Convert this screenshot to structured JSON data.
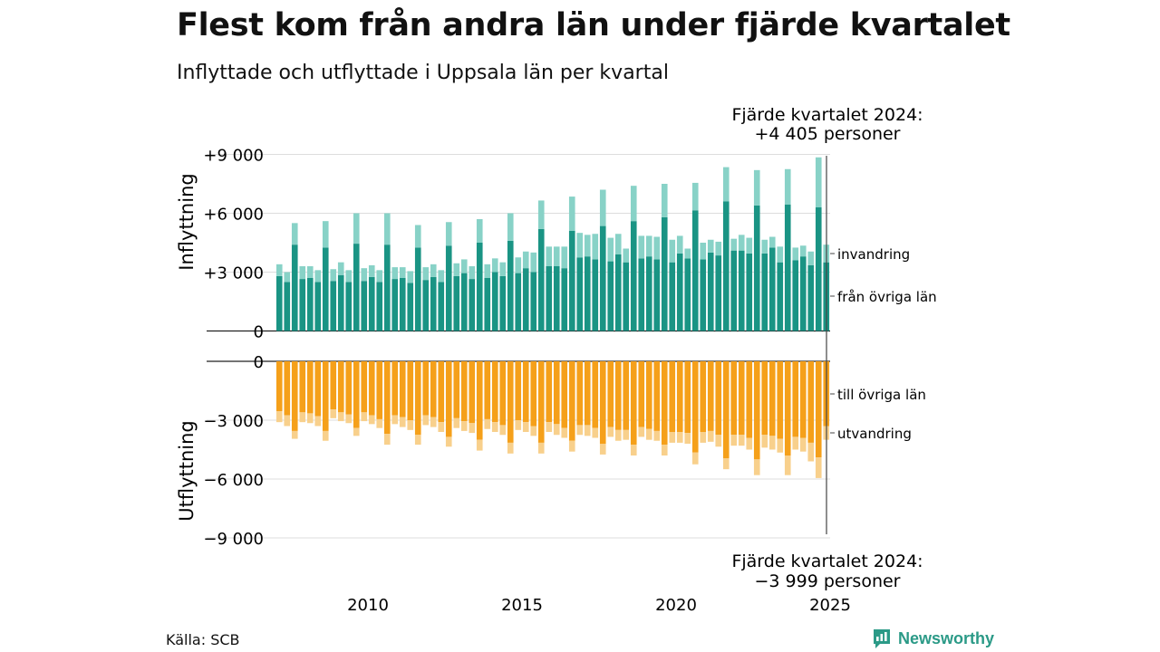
{
  "title": "Flest kom från andra län under fjärde kvartalet",
  "subtitle": "Inflyttade och utflyttade i Uppsala län per kvartal",
  "source": "Källa: SCB",
  "logo_text": "Newsworthy",
  "annotation_top": {
    "line1": "Fjärde kvartalet 2024:",
    "line2": "+4 405 personer"
  },
  "annotation_bottom": {
    "line1": "Fjärde kvartalet 2024:",
    "line2": "−3 999 personer"
  },
  "ylabel_top": "Inflyttning",
  "ylabel_bottom": "Utflyttning",
  "top_ticks": [
    {
      "v": 0,
      "label": "0"
    },
    {
      "v": 3000,
      "label": "+3 000"
    },
    {
      "v": 6000,
      "label": "+6 000"
    },
    {
      "v": 9000,
      "label": "+9 000"
    }
  ],
  "bottom_ticks": [
    {
      "v": 0,
      "label": "0"
    },
    {
      "v": -3000,
      "label": "−3 000"
    },
    {
      "v": -6000,
      "label": "−6 000"
    },
    {
      "v": -9000,
      "label": "−9 000"
    }
  ],
  "x_ticks": [
    "2010",
    "2015",
    "2020",
    "2025"
  ],
  "legend": {
    "invandring": "invandring",
    "fran_ovriga_lan": "från övriga län",
    "till_ovriga_lan": "till övriga län",
    "utvandring": "utvandring"
  },
  "colors": {
    "fran_ovriga_lan": "#1a9484",
    "invandring": "#88d2c7",
    "till_ovriga_lan": "#f5a01a",
    "utvandring": "#f8d08c",
    "grid": "#dddddd"
  },
  "chart_data": {
    "type": "bar",
    "x_start": "2007 Q1",
    "x_end": "2024 Q4",
    "ylim_top": [
      0,
      9000
    ],
    "ylim_bottom": [
      -9000,
      0
    ],
    "series": [
      {
        "name": "från övriga län",
        "values": [
          2800,
          2500,
          4400,
          2650,
          2700,
          2500,
          4250,
          2550,
          2850,
          2500,
          4450,
          2550,
          2750,
          2500,
          4400,
          2650,
          2700,
          2450,
          4250,
          2600,
          2750,
          2500,
          4350,
          2800,
          2950,
          2650,
          4500,
          2700,
          3000,
          2800,
          4600,
          2950,
          3200,
          3000,
          5200,
          3300,
          3300,
          3200,
          5100,
          3750,
          3800,
          3650,
          5350,
          3550,
          3900,
          3500,
          5600,
          3700,
          3800,
          3650,
          5800,
          3500,
          3950,
          3700,
          6150,
          3650,
          4000,
          3850,
          6600,
          4100,
          4100,
          3950,
          6400,
          3950,
          4250,
          3500,
          6450,
          3600,
          3800,
          3350,
          6300,
          3500
        ]
      },
      {
        "name": "invandring",
        "values": [
          600,
          500,
          1100,
          650,
          600,
          600,
          1350,
          600,
          650,
          600,
          1550,
          650,
          600,
          600,
          1600,
          600,
          550,
          600,
          1150,
          650,
          650,
          600,
          1200,
          650,
          700,
          650,
          1200,
          700,
          700,
          700,
          1400,
          800,
          850,
          1000,
          1450,
          1000,
          1000,
          1100,
          1750,
          1250,
          1100,
          1300,
          1850,
          1200,
          1050,
          700,
          1800,
          1150,
          1050,
          1150,
          1700,
          1150,
          900,
          500,
          1400,
          850,
          650,
          700,
          1750,
          600,
          800,
          800,
          1800,
          700,
          550,
          800,
          1800,
          650,
          550,
          700,
          2550,
          900
        ]
      },
      {
        "name": "till övriga län",
        "values": [
          -2550,
          -2750,
          -3550,
          -2600,
          -2650,
          -2800,
          -3550,
          -2450,
          -2600,
          -2700,
          -3400,
          -2600,
          -2750,
          -2950,
          -3700,
          -2750,
          -2850,
          -3000,
          -3750,
          -2750,
          -2850,
          -3100,
          -3850,
          -2900,
          -3050,
          -3150,
          -4000,
          -2950,
          -3100,
          -3250,
          -4150,
          -3000,
          -3100,
          -3300,
          -4150,
          -3100,
          -3200,
          -3400,
          -4050,
          -3250,
          -3250,
          -3400,
          -4200,
          -3350,
          -3500,
          -3500,
          -4250,
          -3350,
          -3450,
          -3550,
          -4250,
          -3600,
          -3600,
          -3650,
          -4650,
          -3600,
          -3550,
          -3750,
          -4950,
          -3750,
          -3750,
          -3900,
          -5000,
          -3750,
          -3800,
          -3950,
          -4800,
          -3850,
          -3900,
          -4150,
          -4900,
          -3300
        ]
      },
      {
        "name": "utvandring",
        "values": [
          -550,
          -550,
          -400,
          -500,
          -500,
          -500,
          -500,
          -450,
          -450,
          -450,
          -400,
          -450,
          -450,
          -450,
          -550,
          -450,
          -500,
          -500,
          -500,
          -500,
          -500,
          -500,
          -500,
          -500,
          -500,
          -500,
          -550,
          -500,
          -500,
          -500,
          -550,
          -500,
          -500,
          -500,
          -550,
          -500,
          -550,
          -500,
          -550,
          -500,
          -550,
          -500,
          -550,
          -500,
          -550,
          -500,
          -550,
          -500,
          -550,
          -500,
          -550,
          -550,
          -550,
          -550,
          -600,
          -550,
          -550,
          -600,
          -550,
          -550,
          -550,
          -600,
          -800,
          -650,
          -700,
          -700,
          -1000,
          -650,
          -700,
          -950,
          -1050,
          -700
        ]
      }
    ]
  }
}
